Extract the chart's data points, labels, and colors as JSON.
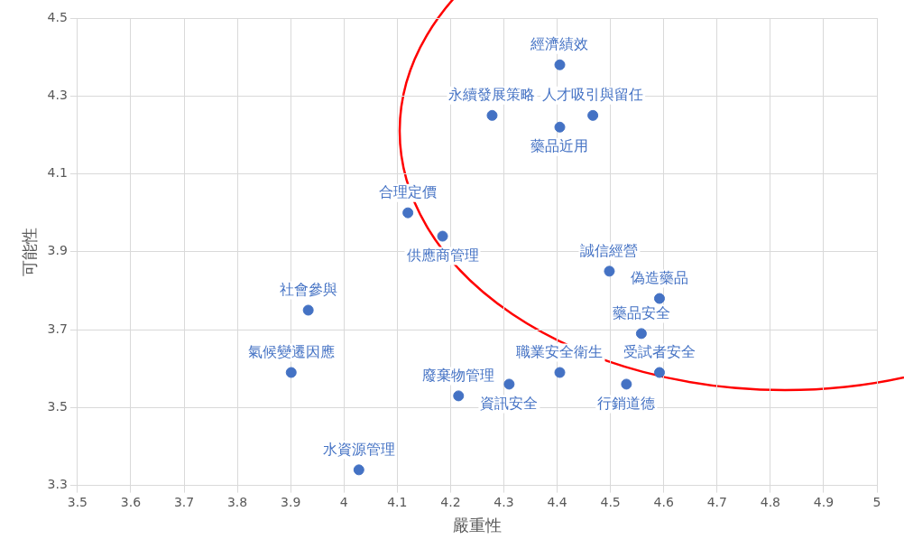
{
  "chart_data": {
    "type": "scatter",
    "xlabel": "嚴重性",
    "ylabel": "可能性",
    "series": [
      {
        "color": "#4472c4",
        "x": [
          4.405,
          4.278,
          4.405,
          4.467,
          4.12,
          4.185,
          4.498,
          4.592,
          3.933,
          4.558,
          3.901,
          4.405,
          4.592,
          4.31,
          4.53,
          4.215,
          4.028
        ],
        "values": [
          4.38,
          4.25,
          4.22,
          4.25,
          4.0,
          3.94,
          3.85,
          3.78,
          3.75,
          3.69,
          3.59,
          3.59,
          3.59,
          3.56,
          3.56,
          3.53,
          3.34
        ]
      }
    ],
    "annotations": [
      {
        "text": "經濟績效",
        "x": 4.405,
        "y": 4.38
      },
      {
        "text": "永續發展策略",
        "x": 4.278,
        "y": 4.25
      },
      {
        "text": "藥品近用",
        "x": 4.405,
        "y": 4.22
      },
      {
        "text": "人才吸引與留任",
        "x": 4.467,
        "y": 4.25
      },
      {
        "text": "合理定價",
        "x": 4.12,
        "y": 4.0
      },
      {
        "text": "供應商管理",
        "x": 4.185,
        "y": 3.94
      },
      {
        "text": "誠信經營",
        "x": 4.498,
        "y": 3.85
      },
      {
        "text": "偽造藥品",
        "x": 4.592,
        "y": 3.78
      },
      {
        "text": "社會參與",
        "x": 3.933,
        "y": 3.75
      },
      {
        "text": "藥品安全",
        "x": 4.558,
        "y": 3.69
      },
      {
        "text": "氣候變遷因應",
        "x": 3.901,
        "y": 3.59
      },
      {
        "text": "職業安全衛生",
        "x": 4.405,
        "y": 3.59
      },
      {
        "text": "受試者安全",
        "x": 4.592,
        "y": 3.59
      },
      {
        "text": "資訊安全",
        "x": 4.31,
        "y": 3.56
      },
      {
        "text": "行銷道德",
        "x": 4.53,
        "y": 3.56
      },
      {
        "text": "廢棄物管理",
        "x": 4.215,
        "y": 3.53
      },
      {
        "text": "水資源管理",
        "x": 4.028,
        "y": 3.34
      }
    ],
    "xlim": [
      3.5,
      5
    ],
    "xticks": [
      3.5,
      3.6,
      3.7,
      3.8,
      3.9,
      4,
      4.1,
      4.2,
      4.3,
      4.4,
      4.5,
      4.6,
      4.7,
      4.8,
      4.9,
      5
    ],
    "ylim": [
      3.3,
      4.5
    ],
    "yticks": [
      3.3,
      3.5,
      3.7,
      3.9,
      4.1,
      4.3,
      4.5
    ],
    "grid": true,
    "legend": false,
    "marker": "circle"
  }
}
